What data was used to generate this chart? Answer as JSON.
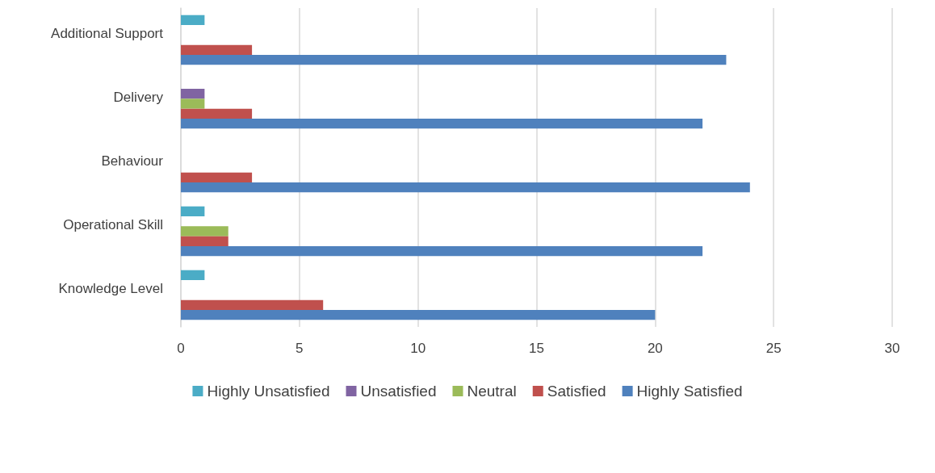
{
  "chart_data": {
    "type": "bar",
    "orientation": "horizontal",
    "categories": [
      "Additional Support",
      "Delivery",
      "Behaviour",
      "Operational Skill",
      "Knowledge Level"
    ],
    "series": [
      {
        "name": "Highly Unsatisfied",
        "color": "#4bacc6",
        "values": [
          1,
          0,
          0,
          1,
          1
        ]
      },
      {
        "name": "Unsatisfied",
        "color": "#8064a2",
        "values": [
          0,
          1,
          0,
          0,
          0
        ]
      },
      {
        "name": "Neutral",
        "color": "#9bbb59",
        "values": [
          0,
          1,
          0,
          2,
          0
        ]
      },
      {
        "name": "Satisfied",
        "color": "#c0504d",
        "values": [
          3,
          3,
          3,
          2,
          6
        ]
      },
      {
        "name": "Highly Satisfied",
        "color": "#4f81bd",
        "values": [
          23,
          22,
          24,
          22,
          20
        ]
      }
    ],
    "xlim": [
      0,
      30
    ],
    "xticks": [
      0,
      5,
      10,
      15,
      20,
      25,
      30
    ],
    "grid": "x",
    "legend": "bottom"
  }
}
